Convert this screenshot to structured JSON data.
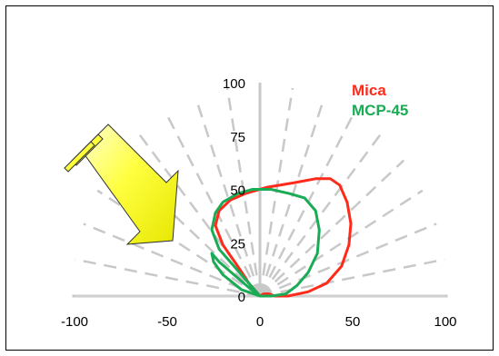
{
  "chart_data": {
    "type": "line",
    "subtype": "polar-pattern",
    "x_ticks": [
      "-100",
      "-50",
      "0",
      "50",
      "100"
    ],
    "y_ticks": [
      "0",
      "25",
      "50",
      "75",
      "100"
    ],
    "xlim": [
      -100,
      100
    ],
    "ylim": [
      0,
      100
    ],
    "legend": {
      "placement": "top-right"
    },
    "series": [
      {
        "name": "Mica",
        "color": "#ff2a1a",
        "points": [
          [
            0,
            0
          ],
          [
            -6,
            6
          ],
          [
            -12,
            14
          ],
          [
            -20,
            24
          ],
          [
            -24,
            33
          ],
          [
            -22,
            40
          ],
          [
            -16,
            45
          ],
          [
            -8,
            48
          ],
          [
            4,
            51
          ],
          [
            18,
            53
          ],
          [
            30,
            55
          ],
          [
            38,
            55
          ],
          [
            43,
            52
          ],
          [
            47,
            44
          ],
          [
            49,
            34
          ],
          [
            48,
            24
          ],
          [
            44,
            14
          ],
          [
            36,
            6
          ],
          [
            26,
            2
          ],
          [
            15,
            0
          ],
          [
            8,
            0
          ],
          [
            5,
            1
          ],
          [
            2,
            1
          ],
          [
            0,
            0
          ]
        ]
      },
      {
        "name": "MCP-45",
        "color": "#1aab55",
        "points": [
          [
            0,
            0
          ],
          [
            -10,
            10
          ],
          [
            -22,
            22
          ],
          [
            -26,
            31
          ],
          [
            -24,
            39
          ],
          [
            -20,
            44
          ],
          [
            -12,
            48
          ],
          [
            -4,
            50
          ],
          [
            6,
            50
          ],
          [
            16,
            48
          ],
          [
            24,
            46
          ],
          [
            30,
            40
          ],
          [
            32,
            31
          ],
          [
            31,
            20
          ],
          [
            26,
            11
          ],
          [
            20,
            5
          ],
          [
            14,
            1
          ],
          [
            6,
            0
          ],
          [
            3,
            0
          ],
          [
            2,
            0
          ],
          [
            0,
            0
          ],
          [
            -6,
            4
          ],
          [
            -14,
            10
          ],
          [
            -22,
            16
          ],
          [
            -26,
            20
          ],
          [
            -25,
            16
          ],
          [
            -20,
            10
          ],
          [
            -10,
            3
          ],
          [
            0,
            0
          ]
        ]
      }
    ],
    "annotation": {
      "shape": "arrow",
      "color": "#ffff40"
    }
  }
}
